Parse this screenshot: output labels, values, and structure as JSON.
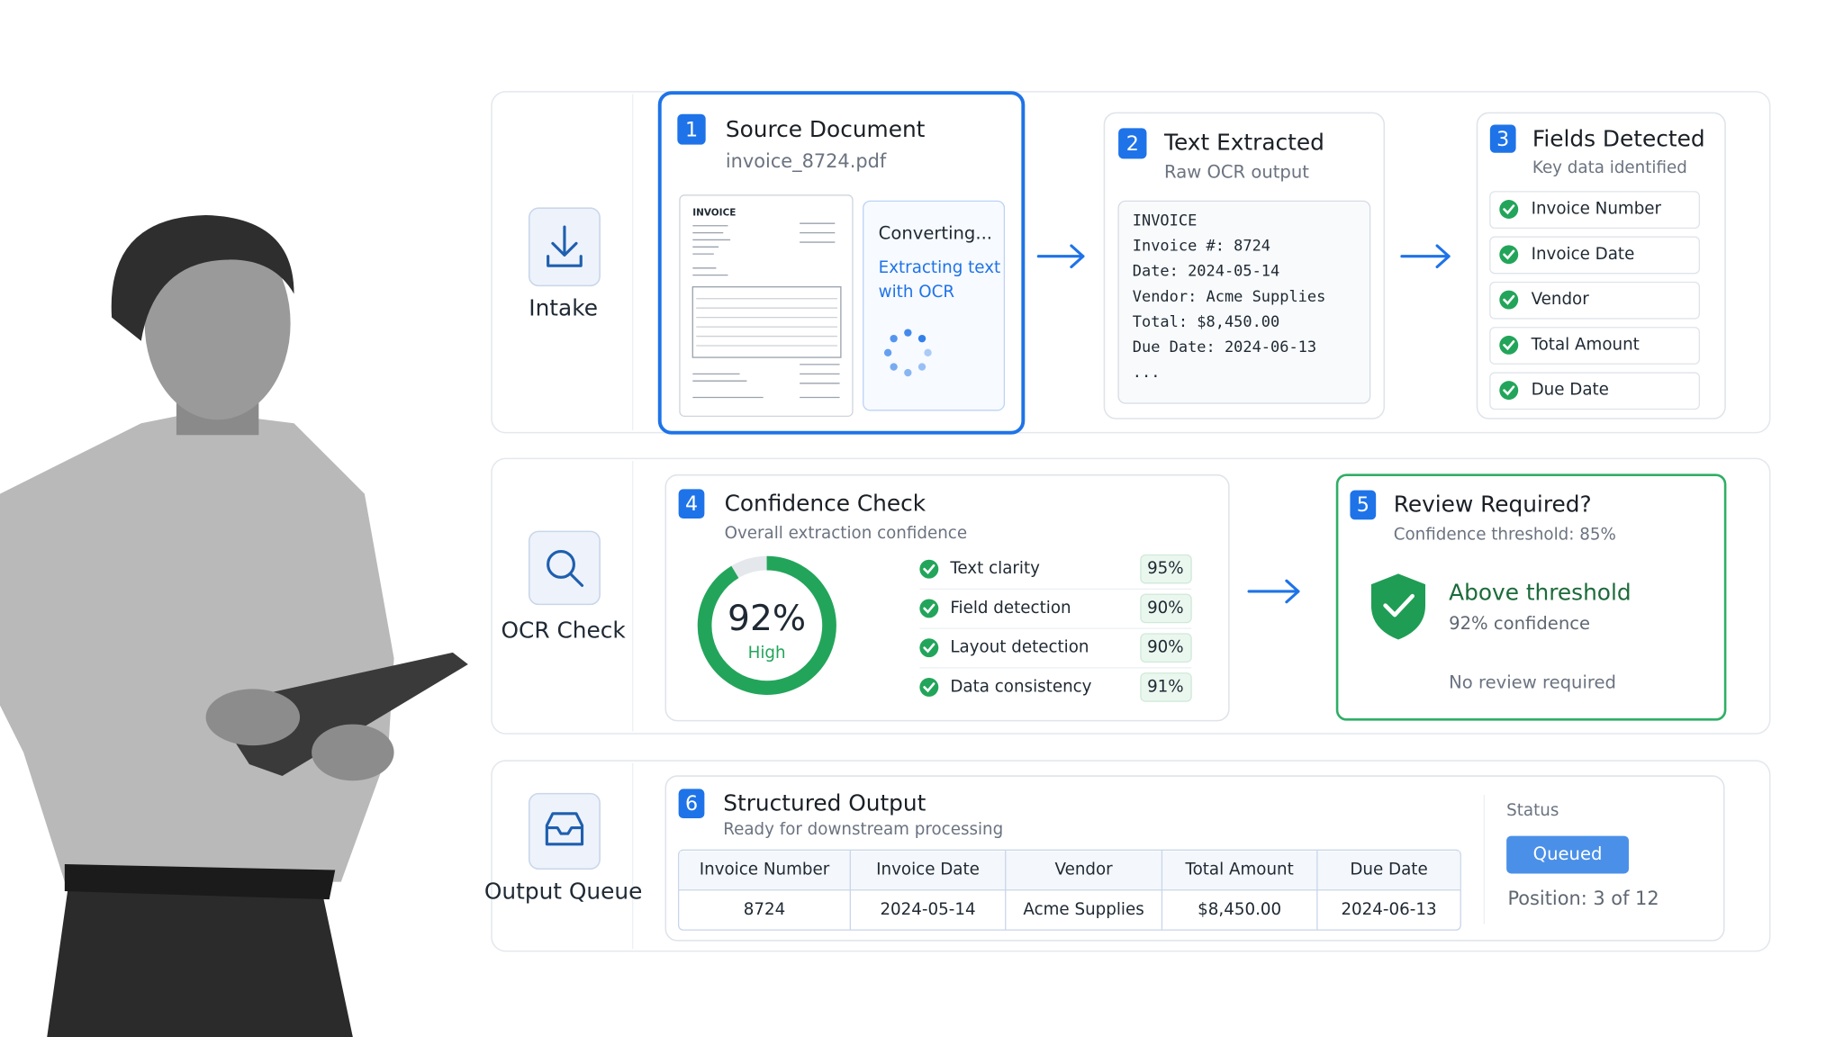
{
  "stages": [
    {
      "label": "Intake"
    },
    {
      "label": "OCR Check"
    },
    {
      "label": "Output Queue"
    }
  ],
  "source": {
    "step": "1",
    "title": "Source Document",
    "file": "invoice_8724.pdf",
    "thumb_title": "INVOICE",
    "status": "Converting...",
    "detail_lines": [
      "Extracting text",
      "with OCR"
    ]
  },
  "text_extracted": {
    "step": "2",
    "title": "Text Extracted",
    "subtitle": "Raw OCR output",
    "lines": [
      "INVOICE",
      "Invoice #: 8724",
      "Date: 2024-05-14",
      "Vendor: Acme Supplies",
      "Total: $8,450.00",
      "Due Date: 2024-06-13",
      "..."
    ]
  },
  "fields": {
    "step": "3",
    "title": "Fields Detected",
    "subtitle": "Key data identified",
    "items": [
      "Invoice Number",
      "Invoice Date",
      "Vendor",
      "Total Amount",
      "Due Date"
    ]
  },
  "confidence": {
    "step": "4",
    "title": "Confidence Check",
    "subtitle": "Overall extraction confidence",
    "overall": "92%",
    "level": "High",
    "metrics": [
      {
        "name": "Text clarity",
        "value": "95%"
      },
      {
        "name": "Field detection",
        "value": "90%"
      },
      {
        "name": "Layout detection",
        "value": "90%"
      },
      {
        "name": "Data consistency",
        "value": "91%"
      }
    ]
  },
  "review": {
    "step": "5",
    "title": "Review Required?",
    "subtitle": "Confidence threshold: 85%",
    "result": "Above threshold",
    "result_detail": "92% confidence",
    "note": "No review required"
  },
  "output": {
    "step": "6",
    "title": "Structured Output",
    "subtitle": "Ready for downstream processing",
    "table": {
      "header": [
        "Invoice Number",
        "Invoice Date",
        "Vendor",
        "Total Amount",
        "Due Date"
      ],
      "rows": [
        [
          "8724",
          "2024-05-14",
          "Acme Supplies",
          "$8,450.00",
          "2024-06-13"
        ]
      ]
    },
    "status_label": "Status",
    "status": "Queued",
    "position": "Position: 3 of 12"
  }
}
